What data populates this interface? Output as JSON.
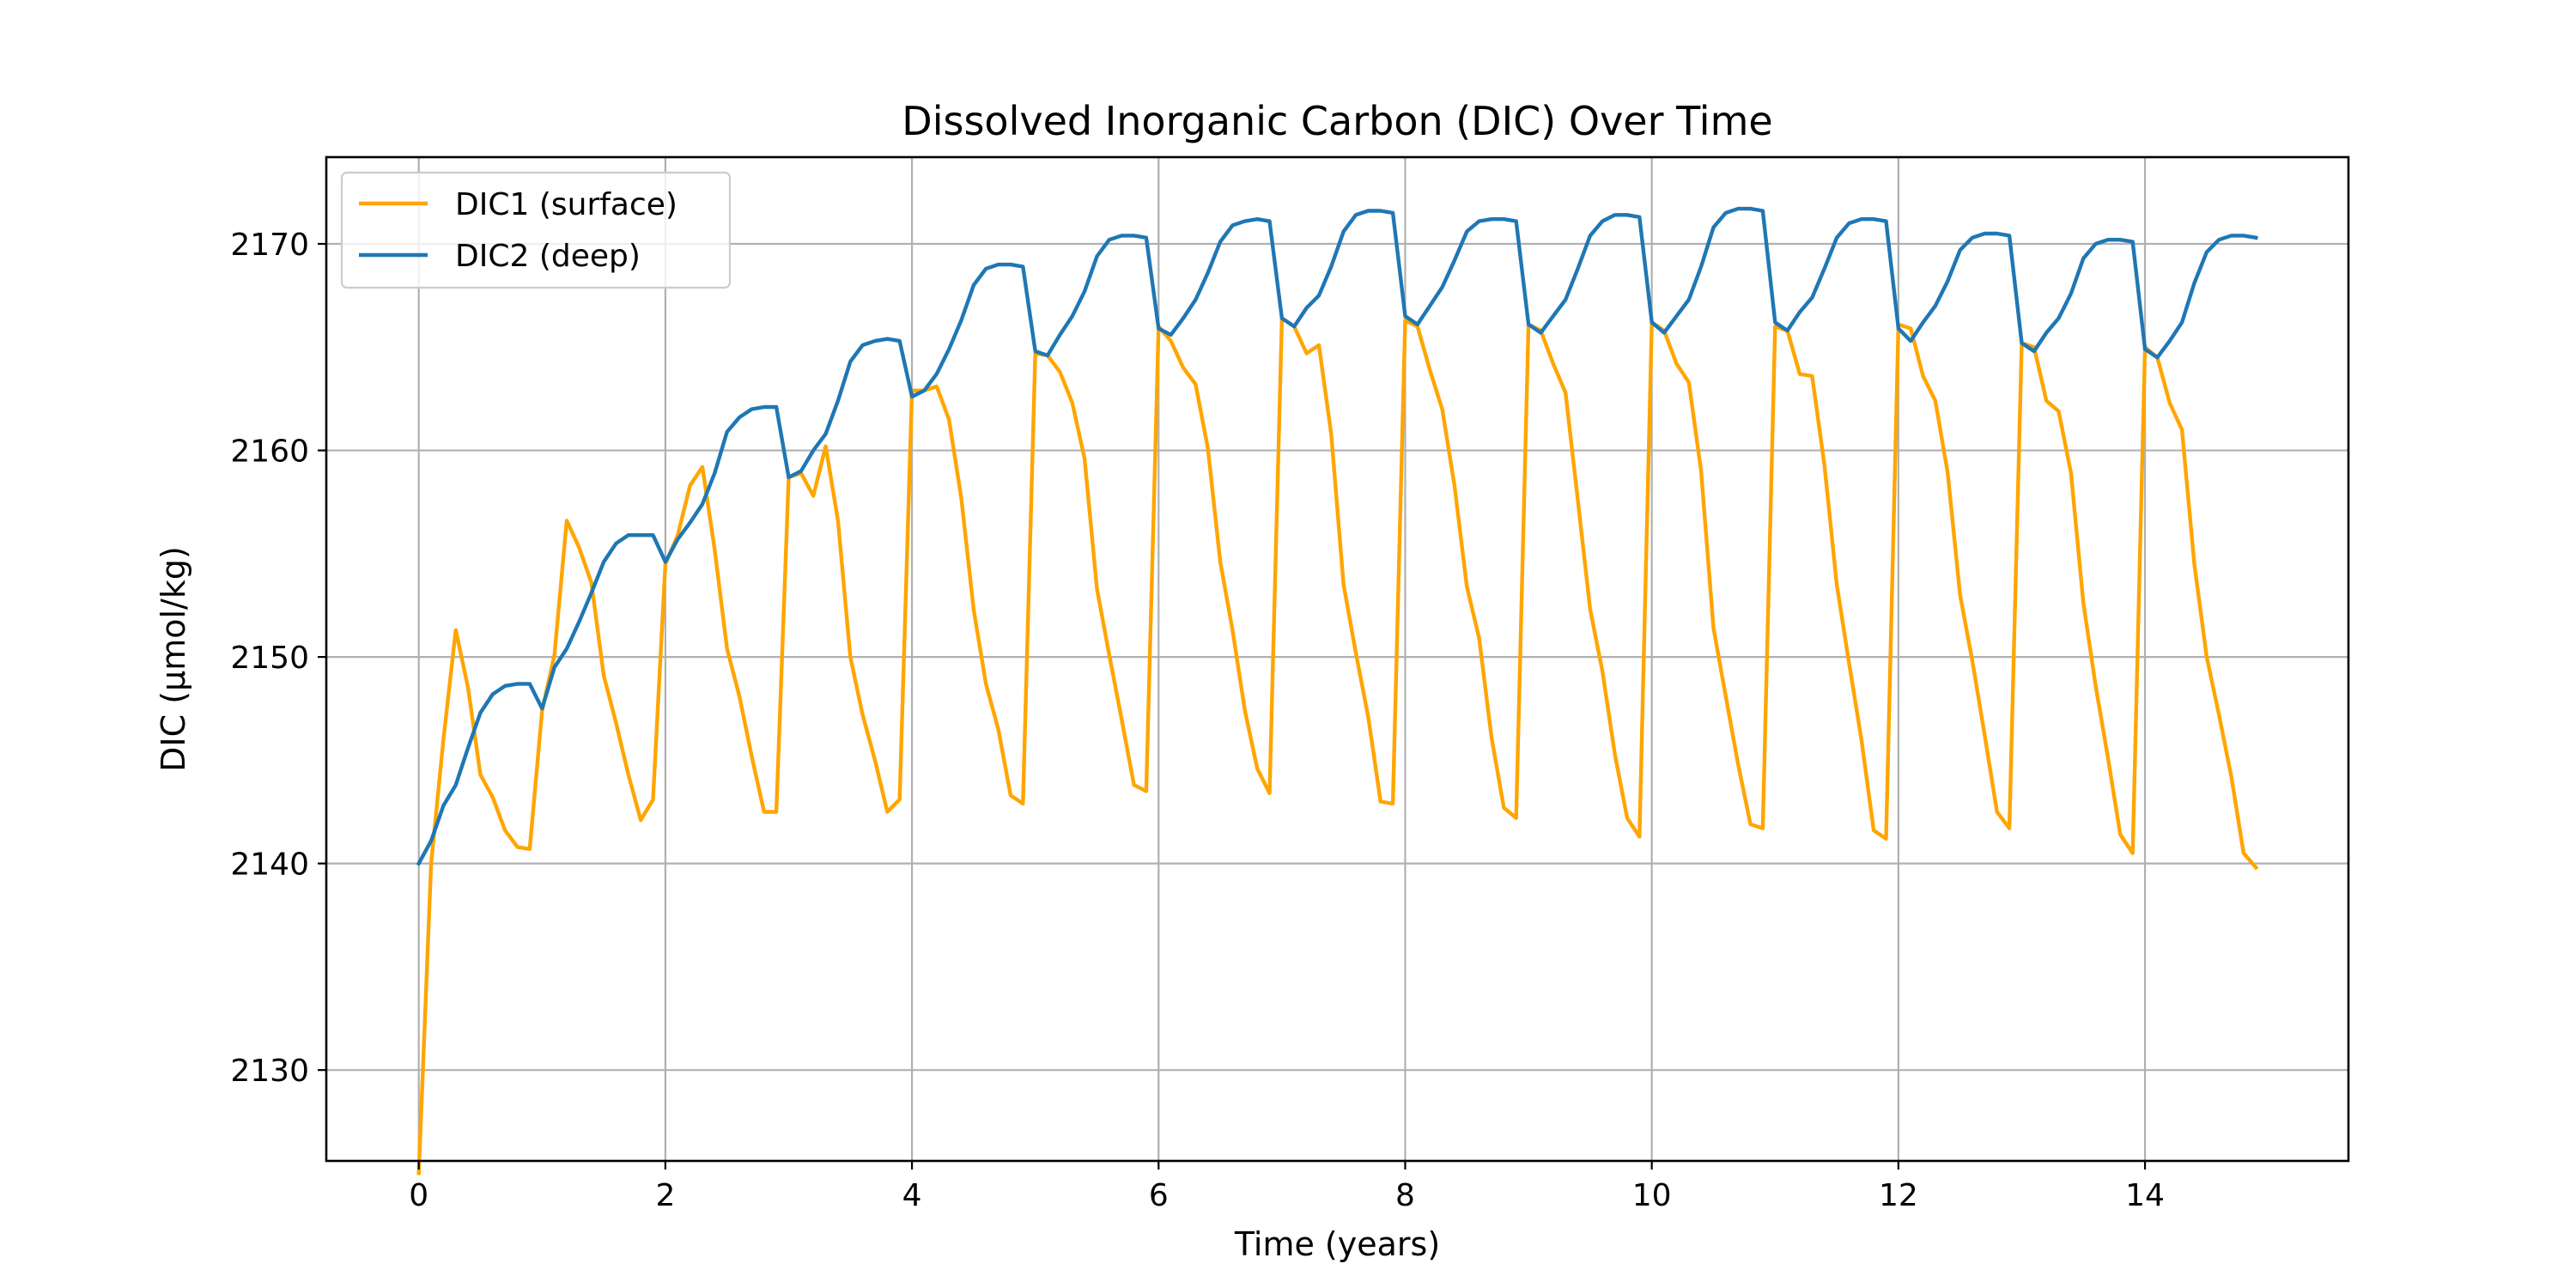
{
  "chart_data": {
    "type": "line",
    "title": "Dissolved Inorganic Carbon (DIC) Over Time",
    "xlabel": "Time (years)",
    "ylabel": "DIC (µmol/kg)",
    "xlim": [
      -0.75,
      15.65
    ],
    "ylim": [
      2125.6,
      2174.2
    ],
    "xticks": [
      0,
      2,
      4,
      6,
      8,
      10,
      12,
      14
    ],
    "yticks": [
      2130,
      2140,
      2150,
      2160,
      2170
    ],
    "grid": true,
    "legend": "top-left",
    "series": [
      {
        "name": "DIC1 (surface)",
        "color": "#ffa500",
        "x": [
          0,
          0.1,
          0.2,
          0.3,
          0.4,
          0.5,
          0.6,
          0.7,
          0.8,
          0.9,
          1.0,
          1.1,
          1.2,
          1.3,
          1.4,
          1.5,
          1.6,
          1.7,
          1.8,
          1.9,
          2.0,
          2.1,
          2.2,
          2.3,
          2.4,
          2.5,
          2.6,
          2.7,
          2.8,
          2.9,
          3.0,
          3.1,
          3.2,
          3.3,
          3.4,
          3.5,
          3.6,
          3.7,
          3.8,
          3.9,
          4.0,
          4.1,
          4.2,
          4.3,
          4.4,
          4.5,
          4.6,
          4.7,
          4.8,
          4.9,
          5.0,
          5.1,
          5.2,
          5.3,
          5.4,
          5.5,
          5.6,
          5.7,
          5.8,
          5.9,
          6.0,
          6.1,
          6.2,
          6.3,
          6.4,
          6.5,
          6.6,
          6.7,
          6.8,
          6.9,
          7.0,
          7.1,
          7.2,
          7.3,
          7.4,
          7.5,
          7.6,
          7.7,
          7.8,
          7.9,
          8.0,
          8.1,
          8.2,
          8.3,
          8.4,
          8.5,
          8.6,
          8.7,
          8.8,
          8.9,
          9.0,
          9.1,
          9.2,
          9.3,
          9.4,
          9.5,
          9.6,
          9.7,
          9.8,
          9.9,
          10.0,
          10.1,
          10.2,
          10.3,
          10.4,
          10.5,
          10.6,
          10.7,
          10.8,
          10.9,
          11.0,
          11.1,
          11.2,
          11.3,
          11.4,
          11.5,
          11.6,
          11.7,
          11.8,
          11.9,
          12.0,
          12.1,
          12.2,
          12.3,
          12.4,
          12.5,
          12.6,
          12.7,
          12.8,
          12.9,
          13.0,
          13.1,
          13.2,
          13.3,
          13.4,
          13.5,
          13.6,
          13.7,
          13.8,
          13.9,
          14.0,
          14.1,
          14.2,
          14.3,
          14.4,
          14.5,
          14.6,
          14.7,
          14.8,
          14.9
        ],
        "values": [
          2125.0,
          2140.0,
          2146.0,
          2151.3,
          2148.5,
          2144.3,
          2143.2,
          2141.6,
          2140.8,
          2140.7,
          2147.4,
          2150.1,
          2156.6,
          2155.3,
          2153.6,
          2149.1,
          2146.8,
          2144.3,
          2142.1,
          2143.1,
          2154.5,
          2155.9,
          2158.3,
          2159.2,
          2155.2,
          2150.4,
          2148.1,
          2145.2,
          2142.5,
          2142.5,
          2158.7,
          2158.9,
          2157.8,
          2160.2,
          2156.6,
          2150.0,
          2147.2,
          2145.0,
          2142.5,
          2143.1,
          2162.9,
          2162.9,
          2163.1,
          2161.5,
          2157.7,
          2152.3,
          2148.7,
          2146.5,
          2143.3,
          2142.9,
          2164.7,
          2164.6,
          2163.8,
          2162.3,
          2159.6,
          2153.3,
          2150.1,
          2147.0,
          2143.8,
          2143.5,
          2166.0,
          2165.3,
          2164.0,
          2163.2,
          2160.1,
          2154.6,
          2151.3,
          2147.4,
          2144.6,
          2143.4,
          2166.4,
          2166.0,
          2164.7,
          2165.1,
          2160.8,
          2153.5,
          2150.2,
          2147.1,
          2143.0,
          2142.9,
          2166.3,
          2166.0,
          2163.9,
          2162.0,
          2158.3,
          2153.4,
          2150.9,
          2146.1,
          2142.7,
          2142.2,
          2166.1,
          2165.8,
          2164.2,
          2162.8,
          2157.6,
          2152.3,
          2149.3,
          2145.3,
          2142.2,
          2141.3,
          2166.2,
          2165.8,
          2164.2,
          2163.3,
          2159.0,
          2151.4,
          2148.1,
          2144.8,
          2141.9,
          2141.7,
          2166.0,
          2165.8,
          2163.7,
          2163.6,
          2159.3,
          2153.5,
          2149.7,
          2146.0,
          2141.6,
          2141.2,
          2166.1,
          2165.9,
          2163.6,
          2162.4,
          2158.9,
          2153.0,
          2149.8,
          2146.2,
          2142.5,
          2141.7,
          2165.2,
          2165.0,
          2162.4,
          2161.9,
          2158.9,
          2152.6,
          2148.6,
          2145.1,
          2141.4,
          2140.5,
          2165.0,
          2164.5,
          2162.3,
          2161.0,
          2154.5,
          2150.0,
          2147.2,
          2144.2,
          2140.5,
          2139.8
        ]
      },
      {
        "name": "DIC2 (deep)",
        "color": "#1f77b4",
        "x": [
          0,
          0.1,
          0.2,
          0.3,
          0.4,
          0.5,
          0.6,
          0.7,
          0.8,
          0.9,
          1.0,
          1.1,
          1.2,
          1.3,
          1.4,
          1.5,
          1.6,
          1.7,
          1.8,
          1.9,
          2.0,
          2.1,
          2.2,
          2.3,
          2.4,
          2.5,
          2.6,
          2.7,
          2.8,
          2.9,
          3.0,
          3.1,
          3.2,
          3.3,
          3.4,
          3.5,
          3.6,
          3.7,
          3.8,
          3.9,
          4.0,
          4.1,
          4.2,
          4.3,
          4.4,
          4.5,
          4.6,
          4.7,
          4.8,
          4.9,
          5.0,
          5.1,
          5.2,
          5.3,
          5.4,
          5.5,
          5.6,
          5.7,
          5.8,
          5.9,
          6.0,
          6.1,
          6.2,
          6.3,
          6.4,
          6.5,
          6.6,
          6.7,
          6.8,
          6.9,
          7.0,
          7.1,
          7.2,
          7.3,
          7.4,
          7.5,
          7.6,
          7.7,
          7.8,
          7.9,
          8.0,
          8.1,
          8.2,
          8.3,
          8.4,
          8.5,
          8.6,
          8.7,
          8.8,
          8.9,
          9.0,
          9.1,
          9.2,
          9.3,
          9.4,
          9.5,
          9.6,
          9.7,
          9.8,
          9.9,
          10.0,
          10.1,
          10.2,
          10.3,
          10.4,
          10.5,
          10.6,
          10.7,
          10.8,
          10.9,
          11.0,
          11.1,
          11.2,
          11.3,
          11.4,
          11.5,
          11.6,
          11.7,
          11.8,
          11.9,
          12.0,
          12.1,
          12.2,
          12.3,
          12.4,
          12.5,
          12.6,
          12.7,
          12.8,
          12.9,
          13.0,
          13.1,
          13.2,
          13.3,
          13.4,
          13.5,
          13.6,
          13.7,
          13.8,
          13.9,
          14.0,
          14.1,
          14.2,
          14.3,
          14.4,
          14.5,
          14.6,
          14.7,
          14.8,
          14.9
        ],
        "values": [
          2140.0,
          2141.1,
          2142.8,
          2143.8,
          2145.6,
          2147.3,
          2148.2,
          2148.6,
          2148.7,
          2148.7,
          2147.5,
          2149.5,
          2150.4,
          2151.7,
          2153.1,
          2154.6,
          2155.5,
          2155.9,
          2155.9,
          2155.9,
          2154.6,
          2155.7,
          2156.5,
          2157.4,
          2158.9,
          2160.9,
          2161.6,
          2162.0,
          2162.1,
          2162.1,
          2158.7,
          2159.0,
          2160.0,
          2160.8,
          2162.4,
          2164.3,
          2165.1,
          2165.3,
          2165.4,
          2165.3,
          2162.6,
          2162.9,
          2163.7,
          2164.9,
          2166.3,
          2168.0,
          2168.8,
          2169.0,
          2169.0,
          2168.9,
          2164.8,
          2164.6,
          2165.6,
          2166.5,
          2167.7,
          2169.4,
          2170.2,
          2170.4,
          2170.4,
          2170.3,
          2165.9,
          2165.6,
          2166.4,
          2167.3,
          2168.6,
          2170.1,
          2170.9,
          2171.1,
          2171.2,
          2171.1,
          2166.4,
          2166.0,
          2166.9,
          2167.5,
          2168.9,
          2170.6,
          2171.4,
          2171.6,
          2171.6,
          2171.5,
          2166.5,
          2166.1,
          2167.0,
          2167.9,
          2169.2,
          2170.6,
          2171.1,
          2171.2,
          2171.2,
          2171.1,
          2166.1,
          2165.7,
          2166.5,
          2167.3,
          2168.8,
          2170.4,
          2171.1,
          2171.4,
          2171.4,
          2171.3,
          2166.2,
          2165.7,
          2166.5,
          2167.3,
          2168.9,
          2170.8,
          2171.5,
          2171.7,
          2171.7,
          2171.6,
          2166.2,
          2165.8,
          2166.7,
          2167.4,
          2168.8,
          2170.3,
          2171.0,
          2171.2,
          2171.2,
          2171.1,
          2165.9,
          2165.3,
          2166.2,
          2167.0,
          2168.2,
          2169.7,
          2170.3,
          2170.5,
          2170.5,
          2170.4,
          2165.2,
          2164.8,
          2165.7,
          2166.4,
          2167.6,
          2169.3,
          2170.0,
          2170.2,
          2170.2,
          2170.1,
          2164.9,
          2164.5,
          2165.3,
          2166.2,
          2168.1,
          2169.6,
          2170.2,
          2170.4,
          2170.4,
          2170.3
        ]
      }
    ]
  }
}
